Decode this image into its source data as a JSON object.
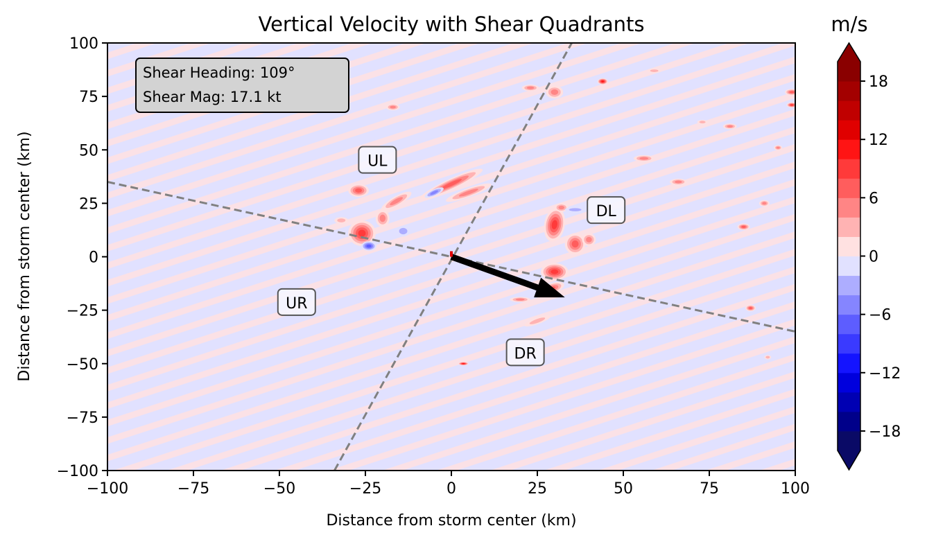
{
  "chart_data": {
    "type": "heatmap",
    "title": "Vertical Velocity with Shear Quadrants",
    "xlabel": "Distance from storm center (km)",
    "ylabel": "Distance from storm center (km)",
    "xlim": [
      -100,
      100
    ],
    "ylim": [
      -100,
      100
    ],
    "xticks": [
      -100,
      -75,
      -50,
      -25,
      0,
      25,
      50,
      75,
      100
    ],
    "xtick_labels": [
      "−100",
      "−75",
      "−50",
      "−25",
      "0",
      "25",
      "50",
      "75",
      "100"
    ],
    "yticks": [
      -100,
      -75,
      -50,
      -25,
      0,
      25,
      50,
      75,
      100
    ],
    "ytick_labels": [
      "−100",
      "−75",
      "−50",
      "−25",
      "0",
      "25",
      "50",
      "75",
      "100"
    ],
    "colorbar": {
      "label": "m/s",
      "ticks": [
        -18,
        -12,
        -6,
        0,
        6,
        12,
        18
      ],
      "tick_labels": [
        "−18",
        "−12",
        "−6",
        "0",
        "6",
        "12",
        "18"
      ],
      "levels": [
        -20,
        -18,
        -16,
        -14,
        -12,
        -10,
        -8,
        -6,
        -4,
        -2,
        0,
        2,
        4,
        6,
        8,
        10,
        12,
        14,
        16,
        18,
        20
      ],
      "colors": [
        "#0a0a66",
        "#00008a",
        "#0000b3",
        "#0000dd",
        "#1414ff",
        "#3a3aff",
        "#5d5dff",
        "#8585ff",
        "#adadff",
        "#e1e1ff",
        "#ffe1e1",
        "#ffb3b3",
        "#ff8585",
        "#ff5d5d",
        "#ff3a3a",
        "#ff1414",
        "#e00000",
        "#c00000",
        "#a30000",
        "#8a0000"
      ],
      "extend": "both"
    },
    "annotation": {
      "line1": "Shear Heading: 109°",
      "line2": "Shear Mag: 17.1 kt"
    },
    "shear_heading_deg": 109,
    "shear_vector": {
      "x0": 0,
      "y0": 0,
      "x1": 33,
      "y1": -19
    },
    "quadrant_lines": [
      {
        "x0": -100,
        "y0": 35,
        "x1": 100,
        "y1": -35
      },
      {
        "x0": -34,
        "y0": -100,
        "x1": 35,
        "y1": 100
      }
    ],
    "quadrant_labels": [
      {
        "text": "UL",
        "x": -21.5,
        "y": 45
      },
      {
        "text": "DL",
        "x": 45,
        "y": 21.5
      },
      {
        "text": "UR",
        "x": -45,
        "y": -21.5
      },
      {
        "text": "DR",
        "x": 21.5,
        "y": -45
      }
    ],
    "features": [
      {
        "x": -26,
        "y": 11,
        "rx": 4,
        "ry": 6,
        "value": 9,
        "rot": 0
      },
      {
        "x": -24,
        "y": 5,
        "rx": 2.2,
        "ry": 2.2,
        "value": -7,
        "rot": 0
      },
      {
        "x": -27,
        "y": 31,
        "rx": 3,
        "ry": 3,
        "value": 8,
        "rot": 0
      },
      {
        "x": -16,
        "y": 26,
        "rx": 5,
        "ry": 2.2,
        "value": 6,
        "rot": -30
      },
      {
        "x": 0,
        "y": 34,
        "rx": 10,
        "ry": 2.5,
        "value": 7,
        "rot": -25
      },
      {
        "x": 5,
        "y": 30,
        "rx": 7,
        "ry": 2,
        "value": 5,
        "rot": -20
      },
      {
        "x": -5,
        "y": 30,
        "rx": 3,
        "ry": 1.5,
        "value": -5,
        "rot": -25
      },
      {
        "x": -20,
        "y": 18,
        "rx": 2,
        "ry": 4,
        "value": 5,
        "rot": 0
      },
      {
        "x": -14,
        "y": 12,
        "rx": 2,
        "ry": 2.5,
        "value": -4,
        "rot": 0
      },
      {
        "x": 30,
        "y": 15,
        "rx": 3,
        "ry": 8,
        "value": 9,
        "rot": 10
      },
      {
        "x": 30,
        "y": -7,
        "rx": 4,
        "ry": 4,
        "value": 10,
        "rot": 0
      },
      {
        "x": 29,
        "y": -15,
        "rx": 4,
        "ry": 2.5,
        "value": 8,
        "rot": -20
      },
      {
        "x": 36,
        "y": 6,
        "rx": 3,
        "ry": 5,
        "value": 8,
        "rot": 0
      },
      {
        "x": 40,
        "y": 8,
        "rx": 2,
        "ry": 3,
        "value": 5,
        "rot": 0
      },
      {
        "x": 32,
        "y": 23,
        "rx": 2,
        "ry": 2,
        "value": 6,
        "rot": 0
      },
      {
        "x": 36,
        "y": 22,
        "rx": 3,
        "ry": 1.2,
        "value": -4,
        "rot": 0
      },
      {
        "x": 20,
        "y": -20,
        "rx": 3,
        "ry": 1.2,
        "value": 5,
        "rot": 0
      },
      {
        "x": 25,
        "y": -30,
        "rx": 4,
        "ry": 1.5,
        "value": 4,
        "rot": -20
      },
      {
        "x": 30,
        "y": 77,
        "rx": 2.5,
        "ry": 3,
        "value": 6,
        "rot": 0
      },
      {
        "x": 23,
        "y": 79,
        "rx": 2.5,
        "ry": 1.5,
        "value": 5,
        "rot": 0
      },
      {
        "x": 44,
        "y": 82,
        "rx": 1.5,
        "ry": 1.5,
        "value": 12,
        "rot": 0
      },
      {
        "x": 66,
        "y": 35,
        "rx": 2.5,
        "ry": 1.5,
        "value": 5,
        "rot": 0
      },
      {
        "x": 56,
        "y": 46,
        "rx": 3,
        "ry": 1.5,
        "value": 5,
        "rot": 0
      },
      {
        "x": 81,
        "y": 61,
        "rx": 2,
        "ry": 1.3,
        "value": 6,
        "rot": 0
      },
      {
        "x": 85,
        "y": 14,
        "rx": 1.8,
        "ry": 1.5,
        "value": 8,
        "rot": 0
      },
      {
        "x": 87,
        "y": -24,
        "rx": 1.5,
        "ry": 1.5,
        "value": 8,
        "rot": 0
      },
      {
        "x": 99,
        "y": 77,
        "rx": 2,
        "ry": 1.5,
        "value": 8,
        "rot": 0
      },
      {
        "x": 99,
        "y": 71,
        "rx": 1.5,
        "ry": 1.2,
        "value": 10,
        "rot": 0
      },
      {
        "x": 3.5,
        "y": -50,
        "rx": 1.5,
        "ry": 0.8,
        "value": 12,
        "rot": 0
      },
      {
        "x": -17,
        "y": 70,
        "rx": 2,
        "ry": 1.5,
        "value": 5,
        "rot": 0
      },
      {
        "x": 91,
        "y": 25,
        "rx": 1.5,
        "ry": 1.5,
        "value": 5,
        "rot": 0
      },
      {
        "x": 73,
        "y": 63,
        "rx": 1.5,
        "ry": 1,
        "value": 4,
        "rot": 0
      },
      {
        "x": 59,
        "y": 87,
        "rx": 2,
        "ry": 1,
        "value": 4,
        "rot": 0
      },
      {
        "x": 95,
        "y": 51,
        "rx": 1.2,
        "ry": 1.2,
        "value": 5,
        "rot": 0
      },
      {
        "x": 92,
        "y": -47,
        "rx": 1,
        "ry": 1,
        "value": 4,
        "rot": 0
      },
      {
        "x": -32,
        "y": 17,
        "rx": 2,
        "ry": 1.5,
        "value": 4,
        "rot": 0
      }
    ]
  }
}
